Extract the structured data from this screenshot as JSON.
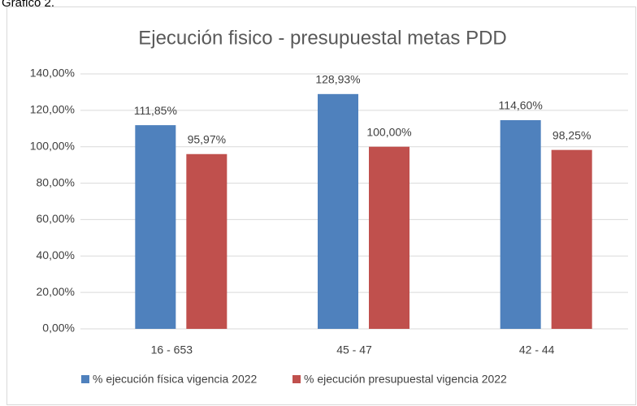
{
  "caption": "Gráfico 2.",
  "chart_data": {
    "type": "bar",
    "title": "Ejecución fisico - presupuestal metas PDD",
    "categories": [
      "16 - 653",
      "45 - 47",
      "42 - 44"
    ],
    "series": [
      {
        "name": "%  ejecución física vigencia 2022",
        "color": "#4f81bd",
        "values": [
          111.85,
          128.93,
          114.6
        ],
        "value_labels": [
          "111,85%",
          "128,93%",
          "114,60%"
        ]
      },
      {
        "name": "%  ejecución presupuestal vigencia 2022",
        "color": "#c0504d",
        "values": [
          95.97,
          100,
          98.25
        ],
        "value_labels": [
          "95,97%",
          "100,00%",
          "98,25%"
        ]
      }
    ],
    "ylim": [
      0,
      140
    ],
    "yticks": [
      {
        "value": 0,
        "label": "0,00%"
      },
      {
        "value": 20,
        "label": "20,00%"
      },
      {
        "value": 40,
        "label": "40,00%"
      },
      {
        "value": 60,
        "label": "60,00%"
      },
      {
        "value": 80,
        "label": "80,00%"
      },
      {
        "value": 100,
        "label": "100,00%"
      },
      {
        "value": 120,
        "label": "120,00%"
      },
      {
        "value": 140,
        "label": "140,00%"
      }
    ],
    "grid": true,
    "legend": "bottom"
  }
}
